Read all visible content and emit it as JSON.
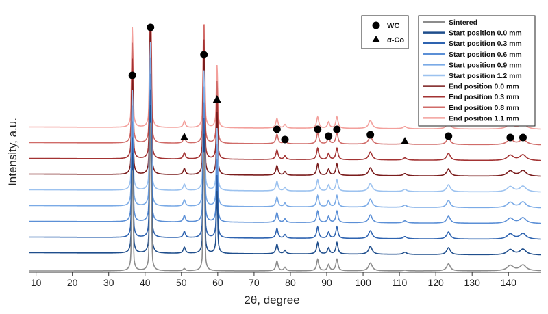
{
  "chart_data": {
    "type": "line",
    "title": "",
    "xlabel": "2θ, degree",
    "ylabel": "Intensity, a.u.",
    "xlim": [
      8,
      149
    ],
    "xticks": [
      10,
      20,
      30,
      40,
      50,
      60,
      70,
      80,
      90,
      100,
      110,
      120,
      130,
      140
    ],
    "grid": false,
    "legend_position": "top-right",
    "phase_legend": [
      {
        "symbol": "circle",
        "name": "WC"
      },
      {
        "symbol": "triangle",
        "name": "α-Co"
      }
    ],
    "wc_peaks": [
      36.5,
      41.5,
      56.2,
      76.3,
      78.5,
      87.5,
      90.5,
      92.8,
      102.0,
      123.5,
      140.5,
      144.0
    ],
    "co_peaks": [
      50.8,
      59.8,
      111.5
    ],
    "markers": [
      {
        "phase": "WC",
        "x": 36.5
      },
      {
        "phase": "WC",
        "x": 41.5
      },
      {
        "phase": "α-Co",
        "x": 50.8
      },
      {
        "phase": "WC",
        "x": 56.2
      },
      {
        "phase": "α-Co",
        "x": 59.8
      },
      {
        "phase": "WC",
        "x": 76.3
      },
      {
        "phase": "WC",
        "x": 78.5
      },
      {
        "phase": "WC",
        "x": 87.5
      },
      {
        "phase": "WC",
        "x": 90.5
      },
      {
        "phase": "WC",
        "x": 92.8
      },
      {
        "phase": "WC",
        "x": 102.0
      },
      {
        "phase": "α-Co",
        "x": 111.5
      },
      {
        "phase": "WC",
        "x": 123.5
      },
      {
        "phase": "WC",
        "x": 140.5
      },
      {
        "phase": "WC",
        "x": 144.0
      }
    ],
    "series": [
      {
        "name": "Sintered",
        "color": "#8c8c8c",
        "offset": 0
      },
      {
        "name": "Start position 0.0 mm",
        "color": "#1f4e8c",
        "offset": 1
      },
      {
        "name": "Start position 0.3 mm",
        "color": "#2e63b0",
        "offset": 2
      },
      {
        "name": "Start position 0.6 mm",
        "color": "#5b8fd6",
        "offset": 3
      },
      {
        "name": "Start position 0.9 mm",
        "color": "#7aaae6",
        "offset": 4
      },
      {
        "name": "Start position 1.2 mm",
        "color": "#9cc2ef",
        "offset": 5
      },
      {
        "name": "End position 0.0 mm",
        "color": "#7a1c1c",
        "offset": 6
      },
      {
        "name": "End position 0.3 mm",
        "color": "#a33333",
        "offset": 7
      },
      {
        "name": "End position 0.8 mm",
        "color": "#d06b68",
        "offset": 8
      },
      {
        "name": "End position 1.1 mm",
        "color": "#f3a09c",
        "offset": 9
      }
    ]
  }
}
